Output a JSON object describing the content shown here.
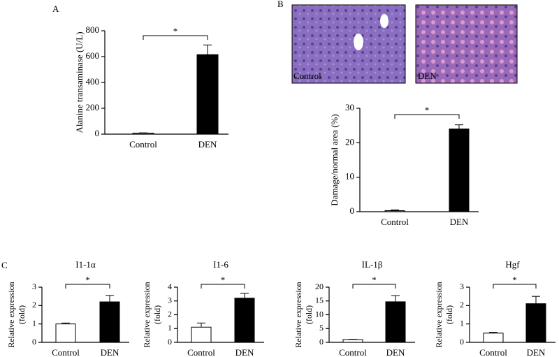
{
  "panel_labels": [
    "A",
    "B",
    "C"
  ],
  "images": [
    {
      "label": "Control"
    },
    {
      "label": "DEN"
    }
  ],
  "chart_data": [
    {
      "type": "bar",
      "ylabel": [
        "Alanine transaminase (U/L)"
      ],
      "categories": [
        "Control",
        "DEN"
      ],
      "values": [
        8,
        615
      ],
      "errors": [
        2,
        75
      ],
      "colors": [
        "#888888",
        "#000000"
      ],
      "ylim": [
        0,
        800
      ],
      "yticks": [
        0,
        200,
        400,
        600,
        800
      ],
      "annotation": "*"
    },
    {
      "type": "bar",
      "ylabel": [
        "Damage/normal area (%)"
      ],
      "categories": [
        "Control",
        "DEN"
      ],
      "values": [
        0.3,
        24
      ],
      "errors": [
        0.2,
        1.2
      ],
      "colors": [
        "#888888",
        "#000000"
      ],
      "ylim": [
        0,
        30
      ],
      "yticks": [
        0,
        10,
        20,
        30
      ],
      "annotation": "*"
    },
    {
      "type": "bar",
      "title": "I1-1α",
      "ylabel": [
        "Relative expression",
        "(fold)"
      ],
      "categories": [
        "Control",
        "DEN"
      ],
      "values": [
        1.0,
        2.2
      ],
      "errors": [
        0.05,
        0.35
      ],
      "colors": [
        "#ffffff",
        "#000000"
      ],
      "ylim": [
        0,
        3
      ],
      "yticks": [
        0,
        1,
        2,
        3
      ],
      "annotation": "*"
    },
    {
      "type": "bar",
      "title": "I1-6",
      "ylabel": [
        "Relative expression",
        "(fold)"
      ],
      "categories": [
        "Control",
        "DEN"
      ],
      "values": [
        1.1,
        3.2
      ],
      "errors": [
        0.3,
        0.35
      ],
      "colors": [
        "#ffffff",
        "#000000"
      ],
      "ylim": [
        0,
        4
      ],
      "yticks": [
        0,
        1,
        2,
        3,
        4
      ],
      "annotation": "*"
    },
    {
      "type": "bar",
      "title": "IL-1β",
      "ylabel": [
        "Relative expression",
        "(fold)"
      ],
      "categories": [
        "Control",
        "DEN"
      ],
      "values": [
        1.0,
        14.7
      ],
      "errors": [
        0.1,
        2.2
      ],
      "colors": [
        "#ffffff",
        "#000000"
      ],
      "ylim": [
        0,
        20
      ],
      "yticks": [
        0,
        5,
        10,
        15,
        20
      ],
      "annotation": "*"
    },
    {
      "type": "bar",
      "title": "Hgf",
      "ylabel": [
        "Relative expression",
        "(fold)"
      ],
      "categories": [
        "Control",
        "DEN"
      ],
      "values": [
        0.5,
        2.1
      ],
      "errors": [
        0.05,
        0.4
      ],
      "colors": [
        "#ffffff",
        "#000000"
      ],
      "ylim": [
        0,
        3
      ],
      "yticks": [
        0,
        1,
        2,
        3
      ],
      "annotation": "*"
    }
  ]
}
